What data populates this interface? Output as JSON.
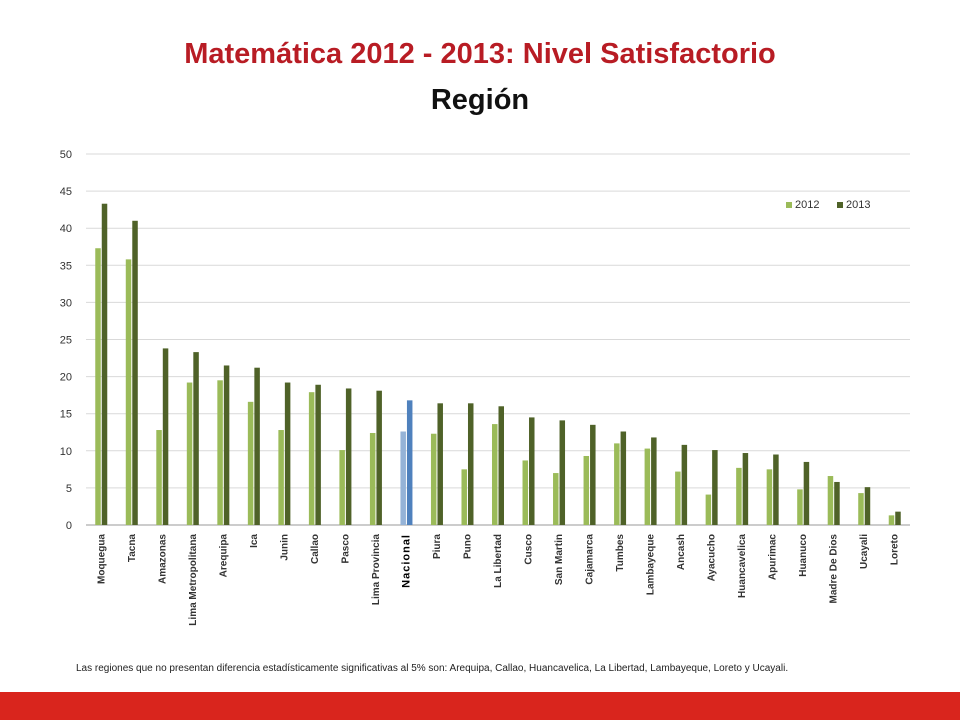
{
  "slide": {
    "title": "Matemática 2012 - 2013: Nivel Satisfactorio",
    "subtitle": "Región",
    "note": "Las regiones que no presentan diferencia estadísticamente significativas al 5% son: Arequipa, Callao, Huancavelica, La Libertad, Lambayeque, Loreto y Ucayali."
  },
  "colors": {
    "title": "#b81c24",
    "series_2012": "#9bbb59",
    "series_2013": "#4f6228",
    "highlight_2012": "#95b3d7",
    "highlight_2013": "#4f81bd",
    "bottom_bar": "#d9251d"
  },
  "chart_data": {
    "type": "bar",
    "title": "",
    "xlabel": "",
    "ylabel": "",
    "ylim": [
      0,
      50
    ],
    "yticks": [
      0,
      5,
      10,
      15,
      20,
      25,
      30,
      35,
      40,
      45,
      50
    ],
    "grid": true,
    "legend_position": "top-right",
    "highlight_category": "Nacional",
    "categories": [
      "Moquegua",
      "Tacna",
      "Amazonas",
      "Lima Metropolitana",
      "Arequipa",
      "Ica",
      "Junin",
      "Callao",
      "Pasco",
      "Lima Provincia",
      "Nacional",
      "Piura",
      "Puno",
      "La Libertad",
      "Cusco",
      "San Martin",
      "Cajamarca",
      "Tumbes",
      "Lambayeque",
      "Ancash",
      "Ayacucho",
      "Huancavelica",
      "Apurimac",
      "Huanuco",
      "Madre De Dios",
      "Ucayali",
      "Loreto"
    ],
    "series": [
      {
        "name": "2012",
        "values": [
          37.3,
          35.8,
          12.8,
          19.2,
          19.5,
          16.6,
          12.8,
          17.9,
          10.1,
          12.4,
          12.6,
          12.3,
          7.5,
          13.6,
          8.7,
          7.0,
          9.3,
          11.0,
          10.3,
          7.2,
          4.1,
          7.7,
          7.5,
          4.8,
          6.6,
          4.3,
          1.3
        ]
      },
      {
        "name": "2013",
        "values": [
          43.3,
          41.0,
          23.8,
          23.3,
          21.5,
          21.2,
          19.2,
          18.9,
          18.4,
          18.1,
          16.8,
          16.4,
          16.4,
          16.0,
          14.5,
          14.1,
          13.5,
          12.6,
          11.8,
          10.8,
          10.1,
          9.7,
          9.5,
          8.5,
          5.8,
          5.1,
          1.8
        ]
      }
    ]
  }
}
